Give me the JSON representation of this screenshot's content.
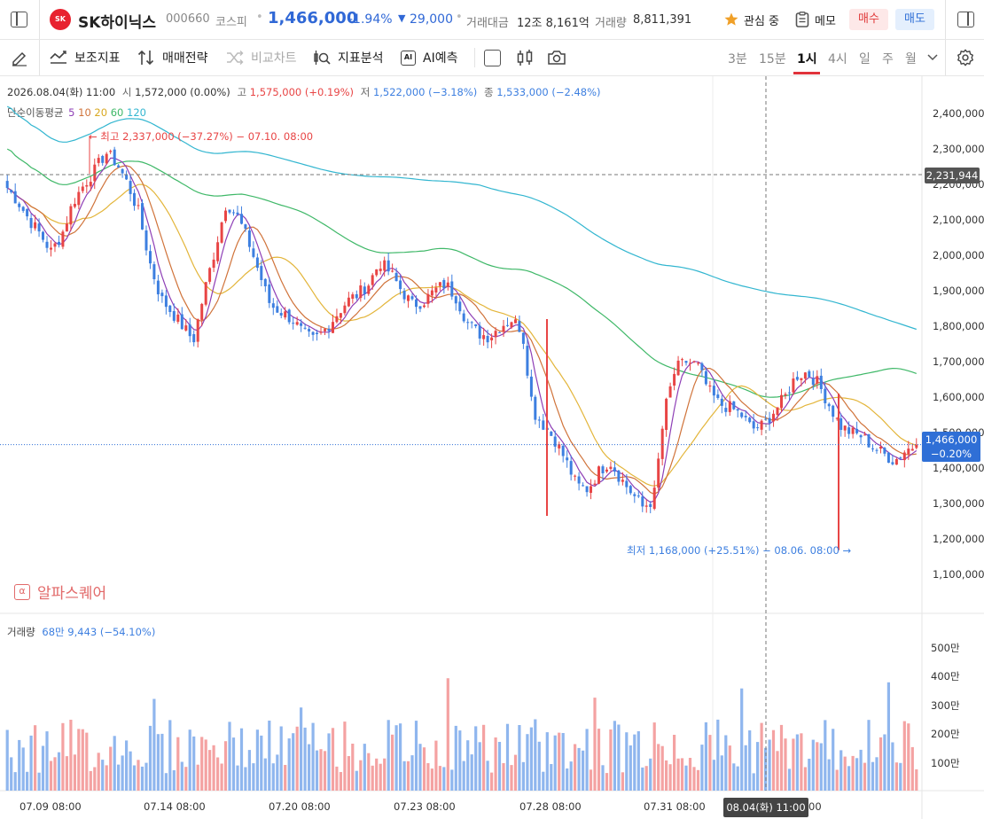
{
  "header": {
    "stock_name": "SK하이닉스",
    "stock_code": "000660",
    "market": "코스피",
    "price": "1,466,000",
    "change_pct": "-1.94%",
    "change_arrow": "▼",
    "change_amt": "29,000",
    "turnover_label": "거래대금",
    "turnover_value": "12조 8,161억",
    "volume_label": "거래량",
    "volume_value": "8,811,391",
    "watch_label": "관심 중",
    "memo_label": "메모",
    "buy_label": "매수",
    "sell_label": "매도",
    "logo_text": "SK"
  },
  "toolbar": {
    "indicators": "보조지표",
    "strategy": "매매전략",
    "compare": "비교차트",
    "analysis": "지표분석",
    "ai_predict": "AI예측",
    "ai_badge": "AI",
    "timeframes": [
      "3분",
      "15분",
      "1시",
      "4시",
      "일",
      "주",
      "월"
    ],
    "active_timeframe": "1시"
  },
  "chart_info": {
    "date": "2026.08.04(화) 11:00",
    "open_label": "시",
    "open": "1,572,000 (0.00%)",
    "high_label": "고",
    "high": "1,575,000 (+0.19%)",
    "low_label": "저",
    "low": "1,522,000 (−3.18%)",
    "close_label": "종",
    "close": "1,533,000 (−2.48%)",
    "ma_label": "단순이동평균",
    "ma_periods": [
      "5",
      "10",
      "20",
      "60",
      "120"
    ]
  },
  "annotations": {
    "high": "최고 2,337,000 (−37.27%) − 07.10. 08:00",
    "low": "최저 1,168,000 (+25.51%) − 08.06. 08:00",
    "crosshair_price": "2,231,944",
    "current_price": "1,466,000",
    "current_change": "−0.20%",
    "crosshair_time": "08.04(화) 11:00"
  },
  "watermark": "알파스퀘어",
  "volume_info": {
    "label": "거래량",
    "value": "68만 9,443 (−54.10%)"
  },
  "colors": {
    "up": "#e84545",
    "down": "#3d7fe0",
    "vol_up": "#f4a2a2",
    "vol_down": "#8fb6ee",
    "ma5": "#8e3fb6",
    "ma10": "#d0733a",
    "ma20": "#e3b53a",
    "ma60": "#3fb868",
    "ma120": "#33b6d0",
    "buy_bg": "#fde8e8",
    "sell_bg": "#e4effd"
  },
  "chart_data": {
    "type": "candlestick",
    "x_tick_labels": [
      "07.09 08:00",
      "07.14 08:00",
      "07.20 08:00",
      "07.23 08:00",
      "07.28 08:00",
      "07.31 08:00",
      "08.04(화) 11:00"
    ],
    "y_tick_labels": [
      "2,400,000",
      "2,300,000",
      "2,200,000",
      "2,100,000",
      "2,000,000",
      "1,900,000",
      "1,800,000",
      "1,700,000",
      "1,600,000",
      "1,500,000",
      "1,400,000",
      "1,300,000",
      "1,200,000",
      "1,100,000"
    ],
    "y_range": [
      1100000,
      2400000
    ],
    "volume_tick_labels": [
      "500만",
      "400만",
      "300만",
      "200만",
      "100만"
    ],
    "volume_range": [
      0,
      5000000
    ],
    "close_path": [
      2190000,
      2150000,
      2100000,
      2060000,
      2010000,
      2060000,
      2150000,
      2200000,
      2240000,
      2290000,
      2260000,
      2200000,
      2120000,
      1980000,
      1880000,
      1840000,
      1800000,
      1760000,
      1900000,
      2020000,
      2150000,
      2110000,
      2040000,
      1950000,
      1860000,
      1840000,
      1820000,
      1780000,
      1760000,
      1790000,
      1830000,
      1870000,
      1890000,
      1920000,
      1980000,
      1950000,
      1900000,
      1860000,
      1870000,
      1900000,
      1920000,
      1880000,
      1810000,
      1780000,
      1770000,
      1800000,
      1820000,
      1790000,
      1560000,
      1520000,
      1480000,
      1420000,
      1350000,
      1340000,
      1390000,
      1420000,
      1370000,
      1330000,
      1290000,
      1310000,
      1560000,
      1680000,
      1700000,
      1690000,
      1620000,
      1580000,
      1570000,
      1550000,
      1510000,
      1520000,
      1560000,
      1600000,
      1660000,
      1670000,
      1640000,
      1580000,
      1520000,
      1500000,
      1490000,
      1460000,
      1440000,
      1420000,
      1450000,
      1466000
    ]
  }
}
